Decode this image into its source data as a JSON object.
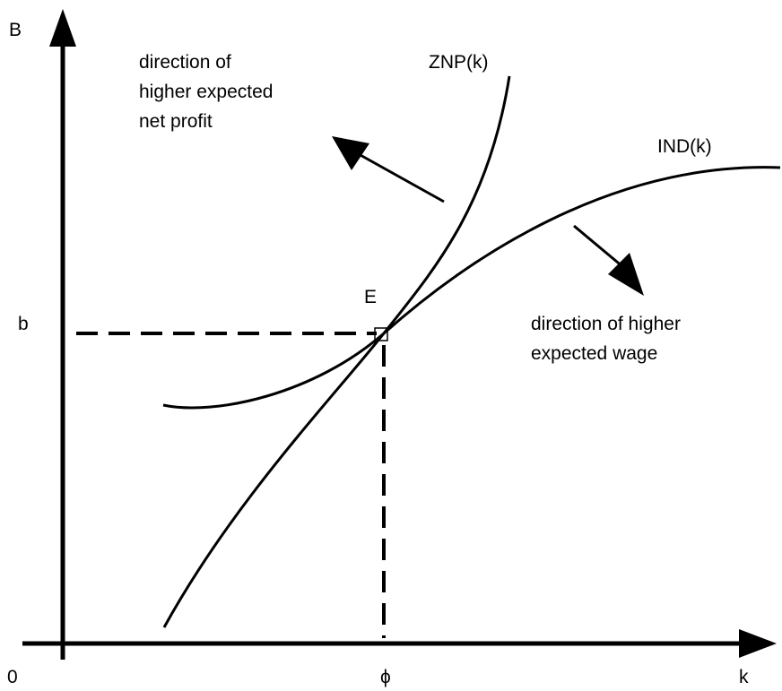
{
  "axes": {
    "y_label": "B",
    "x_label": "k",
    "origin": "0",
    "y_mark": "b",
    "x_mark": "ϕ"
  },
  "point": {
    "label": "E"
  },
  "curves": {
    "znp": "ZNP(k)",
    "ind": "IND(k)"
  },
  "annotations": {
    "profit": [
      "direction of",
      "higher expected",
      "net profit"
    ],
    "wage": [
      "direction of higher",
      "expected wage"
    ]
  }
}
